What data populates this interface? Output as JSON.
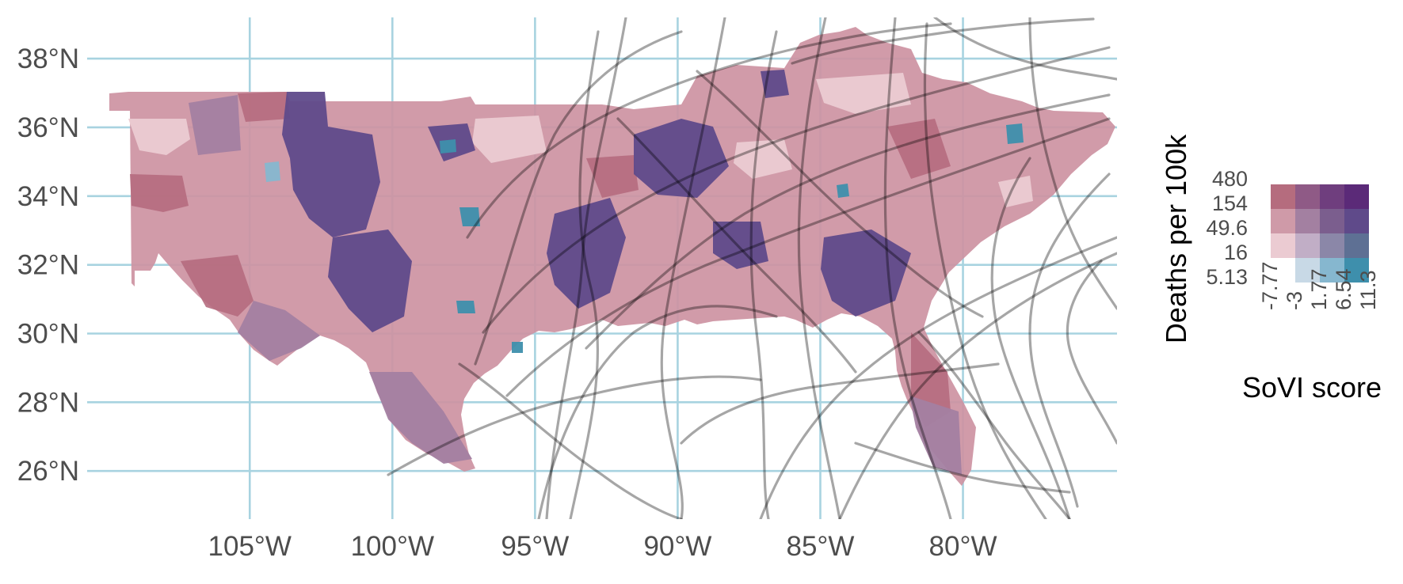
{
  "map": {
    "lat_ticks": [
      "38°N",
      "36°N",
      "34°N",
      "32°N",
      "30°N",
      "28°N",
      "26°N"
    ],
    "lon_ticks": [
      "105°W",
      "100°W",
      "95°W",
      "90°W",
      "85°W",
      "80°W"
    ],
    "lat_values": [
      38,
      36,
      34,
      32,
      30,
      28,
      26
    ],
    "lon_values": [
      -105,
      -100,
      -95,
      -90,
      -85,
      -80
    ],
    "lat_range": [
      24.6,
      39.2
    ],
    "lon_range": [
      -110.7,
      -74.6
    ],
    "grid": true,
    "grid_color": "#a8d3e0",
    "track_color": "#000000"
  },
  "legend": {
    "y_title": "Deaths per 100k",
    "y_ticks": [
      "480",
      "154",
      "49.6",
      "16",
      "5.13"
    ],
    "x_title": "SoVI score",
    "x_ticks": [
      "-7.77",
      "-3",
      "1.77",
      "6.54",
      "11.3"
    ],
    "palette": [
      [
        "#b56c7e",
        "#8f5a86",
        "#6f3e7e",
        "#5b2a78"
      ],
      [
        "#cf9aa8",
        "#a380a1",
        "#7b5e8e",
        "#5f4a8a"
      ],
      [
        "#ebcbd2",
        "#c1aec6",
        "#8b87a8",
        "#5e7094"
      ],
      [
        null,
        "#c8d9e6",
        "#86b7cf",
        "#3e8fac"
      ]
    ]
  }
}
